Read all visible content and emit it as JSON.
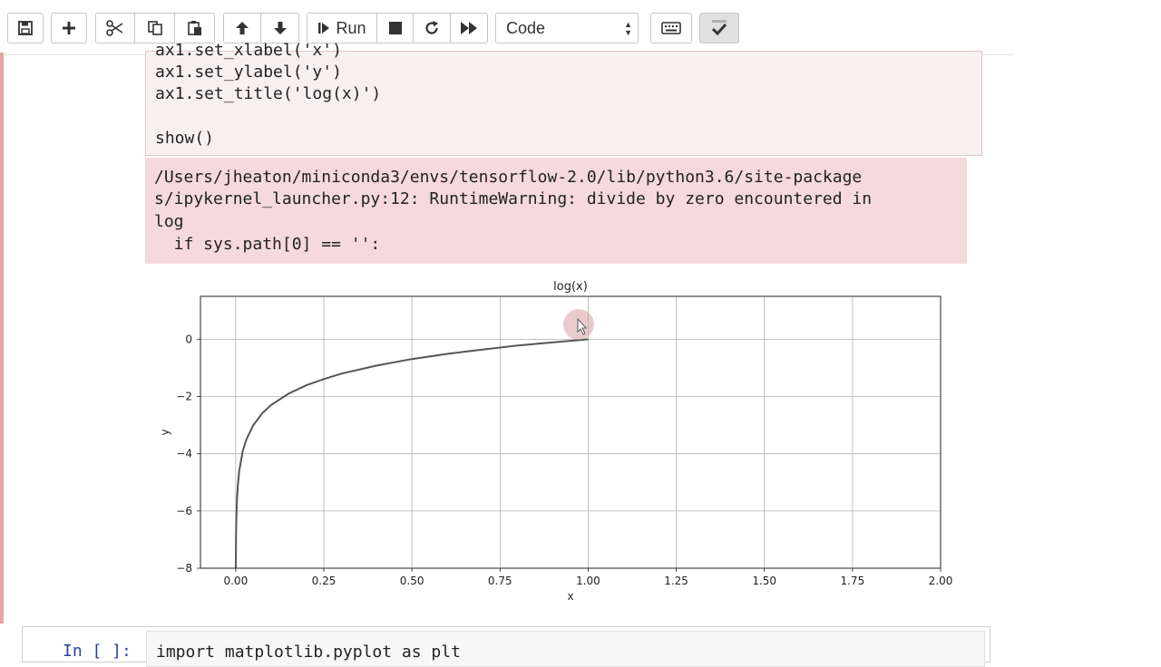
{
  "toolbar": {
    "run_label": "Run",
    "cell_type": "Code"
  },
  "code": {
    "lines": [
      "ax1.set_xlabel('x')",
      "ax1.set_ylabel('y')",
      "ax1.set_title('log(x)')",
      "",
      "show()"
    ]
  },
  "stderr": {
    "lines": [
      "/Users/jheaton/miniconda3/envs/tensorflow-2.0/lib/python3.6/site-package",
      "s/ipykernel_launcher.py:12: RuntimeWarning: divide by zero encountered in",
      "log",
      "  if sys.path[0] == '':"
    ]
  },
  "chart_data": {
    "type": "line",
    "title": "log(x)",
    "xlabel": "x",
    "ylabel": "y",
    "xlim": [
      -0.1,
      2.0
    ],
    "ylim": [
      -8,
      1.5
    ],
    "x_ticks": [
      "0.00",
      "0.25",
      "0.50",
      "0.75",
      "1.00",
      "1.25",
      "1.50",
      "1.75",
      "2.00"
    ],
    "x_tick_values": [
      0,
      0.25,
      0.5,
      0.75,
      1.0,
      1.25,
      1.5,
      1.75,
      2.0
    ],
    "y_ticks": [
      "0",
      "−2",
      "−4",
      "−6",
      "−8"
    ],
    "y_tick_values": [
      0,
      -2,
      -4,
      -6,
      -8
    ],
    "grid": true,
    "series": [
      {
        "color": "#555555",
        "x": [
          0.0003,
          0.001,
          0.002,
          0.004,
          0.006,
          0.01,
          0.02,
          0.03,
          0.05,
          0.075,
          0.1,
          0.15,
          0.2,
          0.25,
          0.3,
          0.4,
          0.5,
          0.6,
          0.7,
          0.8,
          0.9,
          1.0
        ],
        "y": [
          -8.11,
          -6.91,
          -6.21,
          -5.52,
          -5.12,
          -4.61,
          -3.91,
          -3.51,
          -3.0,
          -2.59,
          -2.3,
          -1.9,
          -1.61,
          -1.39,
          -1.2,
          -0.92,
          -0.69,
          -0.51,
          -0.36,
          -0.22,
          -0.11,
          0.0
        ]
      }
    ]
  },
  "next_cell": {
    "prompt": "In [ ]:",
    "code": "import matplotlib.pyplot as plt"
  },
  "colors": {
    "stderr_bg": "#f6d9dc",
    "code_bg": "#f7f0f0",
    "cursor_highlight": "#d9a0a0"
  }
}
